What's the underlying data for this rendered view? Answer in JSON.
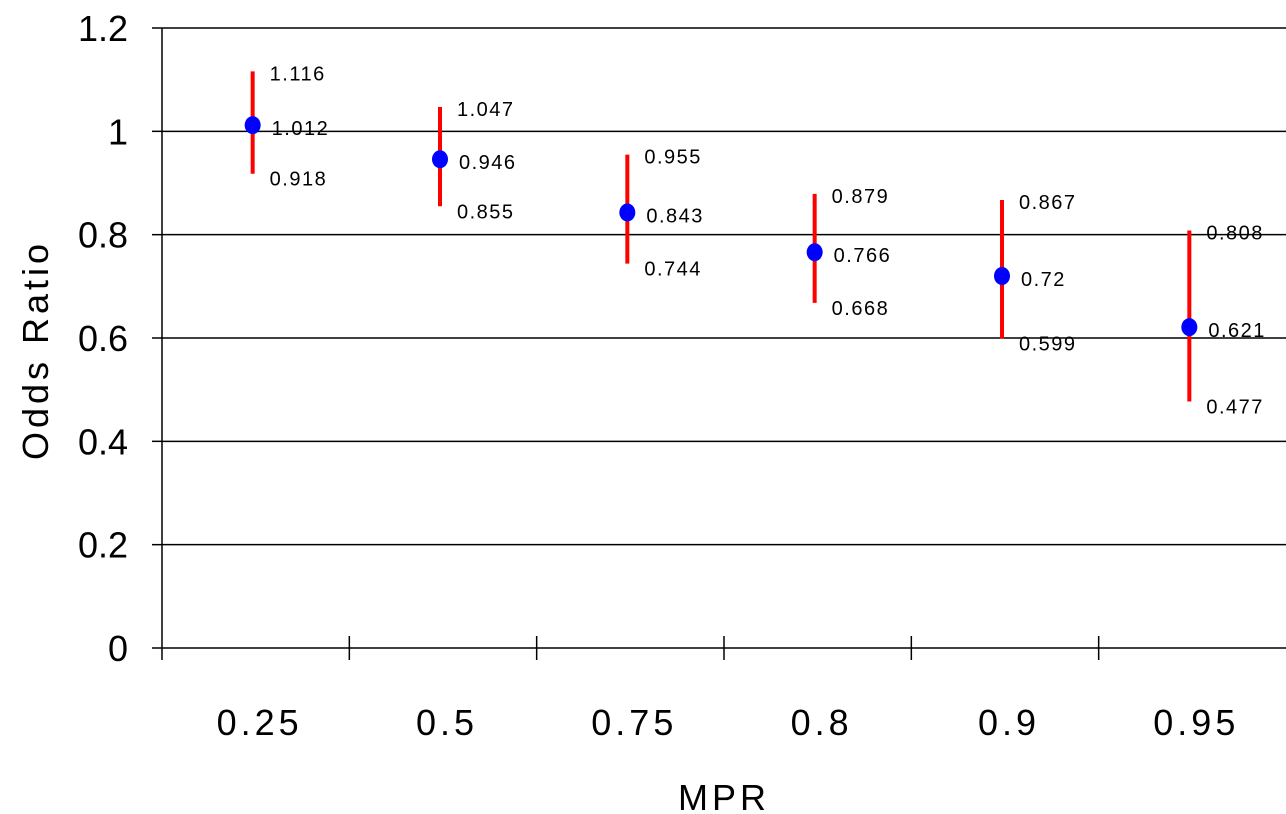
{
  "chart_data": {
    "type": "scatter",
    "title": "",
    "xlabel": "MPR",
    "ylabel": "Odds Ratio",
    "ylim": [
      0,
      1.2
    ],
    "yticks": [
      "0",
      "0.2",
      "0.4",
      "0.6",
      "0.8",
      "1",
      "1.2"
    ],
    "categories": [
      "0.25",
      "0.5",
      "0.75",
      "0.8",
      "0.9",
      "0.95"
    ],
    "grid": "horizontal",
    "legend": "none",
    "series": [
      {
        "values": [
          1.012,
          0.946,
          0.843,
          0.766,
          0.72,
          0.621
        ],
        "value_labels": [
          "1.012",
          "0.946",
          "0.843",
          "0.766",
          "0.72",
          "0.621"
        ],
        "lower": [
          0.918,
          0.855,
          0.744,
          0.668,
          0.599,
          0.477
        ],
        "lower_labels": [
          "0.918",
          "0.855",
          "0.744",
          "0.668",
          "0.599",
          "0.477"
        ],
        "upper": [
          1.116,
          1.047,
          0.955,
          0.879,
          0.867,
          0.808
        ],
        "upper_labels": [
          "1.116",
          "1.047",
          "0.955",
          "0.879",
          "0.867",
          "0.808"
        ]
      }
    ],
    "colors": {
      "point": "#0000ff",
      "error_bar": "#ff0000",
      "grid": "#000000"
    }
  }
}
